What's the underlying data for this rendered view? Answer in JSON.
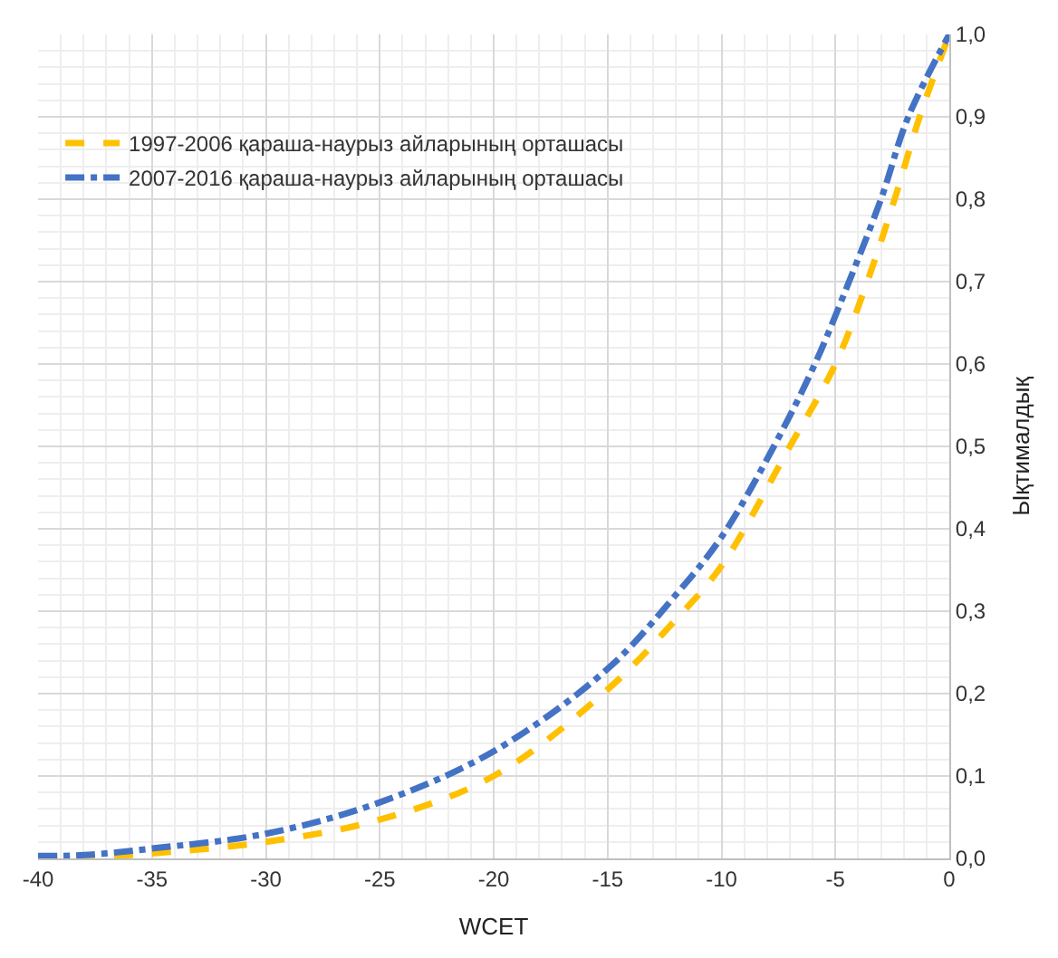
{
  "chart_data": {
    "type": "line",
    "xlabel": "WCET",
    "ylabel": "Ықтималдық",
    "series": [
      {
        "name": "1997-2006 қараша-наурыз айларының орташасы",
        "color": "#ffc000",
        "line_style": "dashed",
        "x": [
          -40,
          -38,
          -35,
          -30,
          -25,
          -20,
          -15,
          -12,
          -10,
          -7.0,
          -5.0,
          -3.6,
          -2.4,
          -1.3,
          0
        ],
        "values": [
          0,
          0.001,
          0.006,
          0.02,
          0.047,
          0.1,
          0.205,
          0.29,
          0.355,
          0.5,
          0.6,
          0.7,
          0.8,
          0.9,
          1.0
        ]
      },
      {
        "name": "2007-2016 қараша-наурыз айларының орташасы",
        "color": "#4472c4",
        "line_style": "dashdot",
        "x": [
          -40,
          -38,
          -35,
          -30,
          -25,
          -20,
          -15,
          -12,
          -10,
          -7.7,
          -5.9,
          -4.4,
          -3.0,
          -1.8,
          0
        ],
        "values": [
          0.003,
          0.004,
          0.012,
          0.03,
          0.068,
          0.13,
          0.23,
          0.32,
          0.39,
          0.5,
          0.6,
          0.7,
          0.8,
          0.9,
          1.0
        ]
      }
    ],
    "xlim": [
      -40,
      0
    ],
    "xticks": [
      -40,
      -35,
      -30,
      -25,
      -20,
      -15,
      -10,
      -5,
      0
    ],
    "ylim": [
      0,
      1.0
    ],
    "yticks": [
      {
        "value": 0,
        "label": "0,0"
      },
      {
        "value": 0.1,
        "label": "0,1"
      },
      {
        "value": 0.2,
        "label": "0,2"
      },
      {
        "value": 0.3,
        "label": "0,3"
      },
      {
        "value": 0.4,
        "label": "0,4"
      },
      {
        "value": 0.5,
        "label": "0,5"
      },
      {
        "value": 0.6,
        "label": "0,6"
      },
      {
        "value": 0.7,
        "label": "0,7"
      },
      {
        "value": 0.8,
        "label": "0,8"
      },
      {
        "value": 0.9,
        "label": "0,9"
      },
      {
        "value": 1.0,
        "label": "1,0"
      }
    ],
    "grid": true,
    "legend": "top left",
    "marker": "none"
  }
}
